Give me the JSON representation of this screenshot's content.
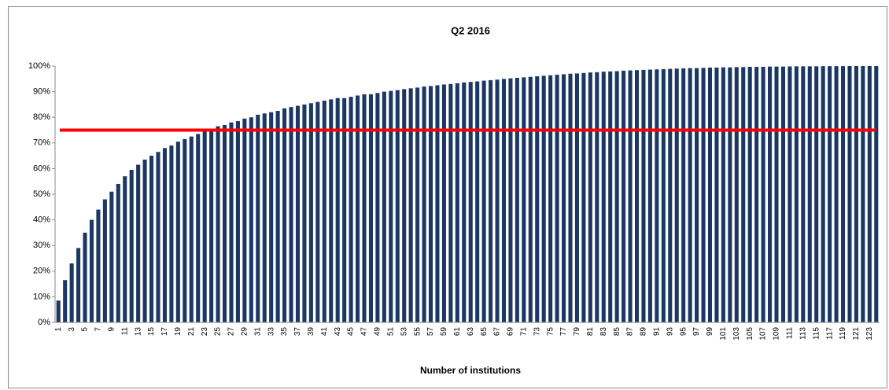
{
  "chart_data": {
    "type": "bar",
    "title": "Q2 2016",
    "x_label": "Number of institutions",
    "categories": [
      "1",
      null,
      "3",
      null,
      "5",
      null,
      "7",
      null,
      "9",
      null,
      "11",
      null,
      "13",
      null,
      "15",
      null,
      "17",
      null,
      "19",
      null,
      "21",
      null,
      "23",
      null,
      "25",
      null,
      "27",
      null,
      "29",
      null,
      "31",
      null,
      "33",
      null,
      "35",
      null,
      "37",
      null,
      "39",
      null,
      "41",
      null,
      "43",
      null,
      "45",
      null,
      "47",
      null,
      "49",
      null,
      "51",
      null,
      "53",
      null,
      "55",
      null,
      "57",
      null,
      "59",
      null,
      "61",
      null,
      "63",
      null,
      "65",
      null,
      "67",
      null,
      "69",
      null,
      "71",
      null,
      "73",
      null,
      "75",
      null,
      "77",
      null,
      "79",
      null,
      "81",
      null,
      "83",
      null,
      "85",
      null,
      "87",
      null,
      "89",
      null,
      "91",
      null,
      "93",
      null,
      "95",
      null,
      "97",
      null,
      "99",
      null,
      "101",
      null,
      "103",
      null,
      "105",
      null,
      "107",
      null,
      "109",
      null,
      "111",
      null,
      "113",
      null,
      "115",
      null,
      "117",
      null,
      "119",
      null,
      "121",
      null,
      "123",
      null
    ],
    "values": [
      8.5,
      16.5,
      23,
      29,
      35,
      40,
      44,
      48,
      51,
      54,
      57,
      59.5,
      61.5,
      63.5,
      65,
      66.5,
      68,
      69,
      70.5,
      71.5,
      72.5,
      73.5,
      74.5,
      75.5,
      76.5,
      77,
      78,
      78.5,
      79.5,
      80,
      81,
      81.5,
      82,
      82.5,
      83.5,
      84,
      84.5,
      85,
      85.5,
      86,
      86.5,
      87,
      87.5,
      87.5,
      88,
      88.5,
      89,
      89,
      89.5,
      90,
      90.3,
      90.6,
      91,
      91.3,
      91.6,
      92,
      92.2,
      92.5,
      92.8,
      93,
      93.3,
      93.6,
      93.8,
      94,
      94.3,
      94.5,
      94.7,
      95,
      95.2,
      95.4,
      95.6,
      95.8,
      96,
      96.2,
      96.4,
      96.6,
      96.8,
      97,
      97.1,
      97.3,
      97.5,
      97.6,
      97.8,
      97.9,
      98,
      98.2,
      98.3,
      98.4,
      98.5,
      98.6,
      98.7,
      98.8,
      98.9,
      99,
      99.1,
      99.2,
      99.2,
      99.3,
      99.4,
      99.4,
      99.5,
      99.5,
      99.6,
      99.6,
      99.7,
      99.7,
      99.7,
      99.8,
      99.8,
      99.8,
      99.85,
      99.9,
      99.9,
      99.9,
      99.9,
      99.95,
      99.95,
      99.95,
      99.95,
      100,
      100,
      100,
      100,
      100
    ],
    "color": "#1b3764",
    "ylim": [
      0,
      100
    ],
    "yticks": [
      {
        "value": 0,
        "label": "0%"
      },
      {
        "value": 10,
        "label": "10%"
      },
      {
        "value": 20,
        "label": "20%"
      },
      {
        "value": 30,
        "label": "30%"
      },
      {
        "value": 40,
        "label": "40%"
      },
      {
        "value": 50,
        "label": "50%"
      },
      {
        "value": 60,
        "label": "60%"
      },
      {
        "value": 70,
        "label": "70%"
      },
      {
        "value": 80,
        "label": "80%"
      },
      {
        "value": 90,
        "label": "90%"
      },
      {
        "value": 100,
        "label": "100%"
      }
    ],
    "grid": false,
    "reference_line": {
      "value": 75,
      "color": "#ff0000"
    }
  }
}
